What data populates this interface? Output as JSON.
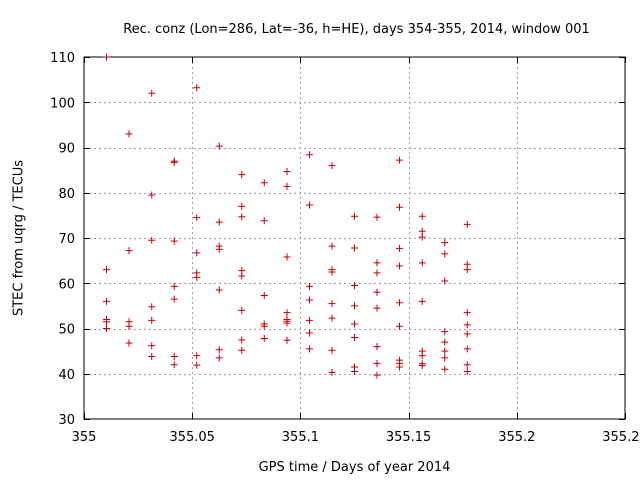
{
  "chart_data": {
    "type": "scatter",
    "title": "Rec. conz (Lon=286, Lat=-36, h=HE), days 354-355, 2014, window 001",
    "xlabel": "GPS time / Days of year 2014",
    "ylabel": "STEC from uqrg / TECUs",
    "xlim": [
      355,
      355.25
    ],
    "ylim": [
      30,
      110
    ],
    "x_ticks": [
      "355",
      "355.05",
      "355.1",
      "355.15",
      "355.2",
      "355.25"
    ],
    "y_ticks": [
      "30",
      "40",
      "50",
      "60",
      "70",
      "80",
      "90",
      "100",
      "110"
    ],
    "x_tick_values": [
      355,
      355.05,
      355.1,
      355.15,
      355.2,
      355.25
    ],
    "y_tick_values": [
      30,
      40,
      50,
      60,
      70,
      80,
      90,
      100,
      110
    ],
    "grid": true,
    "marker": "+",
    "color": "#cc0000",
    "points": [
      [
        355.0104,
        110.0
      ],
      [
        355.0104,
        63.0
      ],
      [
        355.0104,
        56.0
      ],
      [
        355.0104,
        52.0
      ],
      [
        355.0104,
        51.5
      ],
      [
        355.0104,
        50.0
      ],
      [
        355.0208,
        93.0
      ],
      [
        355.0208,
        67.2
      ],
      [
        355.0208,
        51.5
      ],
      [
        355.0208,
        50.5
      ],
      [
        355.0208,
        46.8
      ],
      [
        355.0313,
        102.0
      ],
      [
        355.0313,
        79.5
      ],
      [
        355.0313,
        69.5
      ],
      [
        355.0313,
        54.8
      ],
      [
        355.0313,
        51.8
      ],
      [
        355.0313,
        46.2
      ],
      [
        355.0313,
        43.8
      ],
      [
        355.0417,
        87.0
      ],
      [
        355.0417,
        86.7
      ],
      [
        355.0417,
        69.3
      ],
      [
        355.0417,
        59.3
      ],
      [
        355.0417,
        56.5
      ],
      [
        355.0417,
        43.8
      ],
      [
        355.0417,
        42.0
      ],
      [
        355.0521,
        103.2
      ],
      [
        355.0521,
        74.5
      ],
      [
        355.0521,
        66.7
      ],
      [
        355.0521,
        62.3
      ],
      [
        355.0521,
        61.3
      ],
      [
        355.0521,
        44.0
      ],
      [
        355.0521,
        41.9
      ],
      [
        355.0625,
        90.3
      ],
      [
        355.0625,
        73.5
      ],
      [
        355.0625,
        68.2
      ],
      [
        355.0625,
        67.5
      ],
      [
        355.0625,
        58.5
      ],
      [
        355.0625,
        45.3
      ],
      [
        355.0625,
        43.5
      ],
      [
        355.0729,
        84.0
      ],
      [
        355.0729,
        77.0
      ],
      [
        355.0729,
        74.7
      ],
      [
        355.0729,
        62.8
      ],
      [
        355.0729,
        61.6
      ],
      [
        355.0729,
        54.0
      ],
      [
        355.0729,
        47.5
      ],
      [
        355.0729,
        45.2
      ],
      [
        355.0833,
        82.2
      ],
      [
        355.0833,
        73.8
      ],
      [
        355.0833,
        57.3
      ],
      [
        355.0833,
        51.0
      ],
      [
        355.0833,
        50.5
      ],
      [
        355.0833,
        47.8
      ],
      [
        355.0938,
        84.7
      ],
      [
        355.0938,
        81.4
      ],
      [
        355.0938,
        65.8
      ],
      [
        355.0938,
        53.5
      ],
      [
        355.0938,
        52.0
      ],
      [
        355.0938,
        51.6
      ],
      [
        355.0938,
        51.2
      ],
      [
        355.0938,
        47.4
      ],
      [
        355.1042,
        88.4
      ],
      [
        355.1042,
        77.3
      ],
      [
        355.1042,
        59.3
      ],
      [
        355.1042,
        56.3
      ],
      [
        355.1042,
        51.8
      ],
      [
        355.1042,
        49.0
      ],
      [
        355.1042,
        45.5
      ],
      [
        355.1146,
        86.0
      ],
      [
        355.1146,
        68.2
      ],
      [
        355.1146,
        63.0
      ],
      [
        355.1146,
        62.5
      ],
      [
        355.1146,
        55.5
      ],
      [
        355.1146,
        52.3
      ],
      [
        355.1146,
        45.2
      ],
      [
        355.1146,
        40.3
      ],
      [
        355.125,
        74.8
      ],
      [
        355.125,
        67.8
      ],
      [
        355.125,
        59.5
      ],
      [
        355.125,
        55.0
      ],
      [
        355.125,
        51.0
      ],
      [
        355.125,
        48.0
      ],
      [
        355.125,
        41.5
      ],
      [
        355.125,
        40.5
      ],
      [
        355.1354,
        74.6
      ],
      [
        355.1354,
        64.5
      ],
      [
        355.1354,
        62.3
      ],
      [
        355.1354,
        58.0
      ],
      [
        355.1354,
        54.5
      ],
      [
        355.1354,
        46.0
      ],
      [
        355.1354,
        42.3
      ],
      [
        355.1354,
        39.7
      ],
      [
        355.1458,
        87.2
      ],
      [
        355.1458,
        76.8
      ],
      [
        355.1458,
        67.7
      ],
      [
        355.1458,
        63.8
      ],
      [
        355.1458,
        55.7
      ],
      [
        355.1458,
        50.5
      ],
      [
        355.1458,
        43.0
      ],
      [
        355.1458,
        42.3
      ],
      [
        355.1458,
        41.5
      ],
      [
        355.1563,
        74.8
      ],
      [
        355.1563,
        71.5
      ],
      [
        355.1563,
        70.2
      ],
      [
        355.1563,
        64.5
      ],
      [
        355.1563,
        56.0
      ],
      [
        355.1563,
        45.0
      ],
      [
        355.1563,
        44.0
      ],
      [
        355.1563,
        42.2
      ],
      [
        355.1563,
        41.8
      ],
      [
        355.1667,
        69.0
      ],
      [
        355.1667,
        66.5
      ],
      [
        355.1667,
        60.5
      ],
      [
        355.1667,
        49.3
      ],
      [
        355.1667,
        47.0
      ],
      [
        355.1667,
        45.0
      ],
      [
        355.1667,
        43.5
      ],
      [
        355.1667,
        41.0
      ],
      [
        355.1771,
        73.0
      ],
      [
        355.1771,
        64.2
      ],
      [
        355.1771,
        63.0
      ],
      [
        355.1771,
        53.5
      ],
      [
        355.1771,
        50.8
      ],
      [
        355.1771,
        48.8
      ],
      [
        355.1771,
        45.5
      ],
      [
        355.1771,
        42.0
      ],
      [
        355.1771,
        40.5
      ]
    ]
  }
}
